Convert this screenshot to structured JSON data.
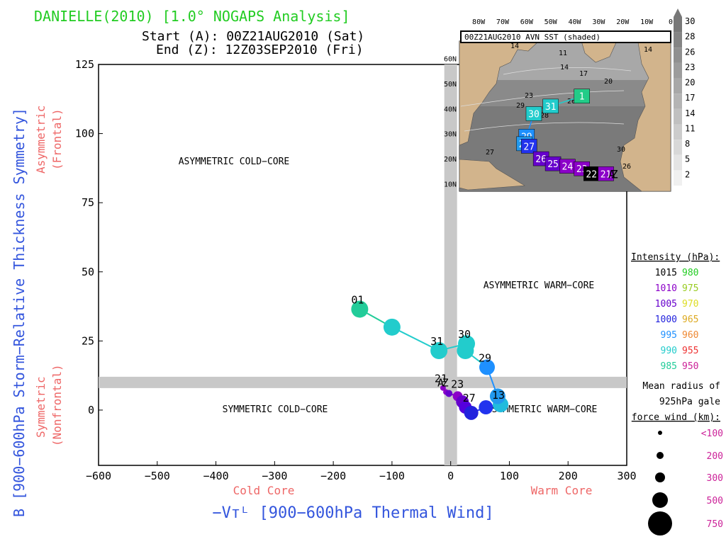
{
  "header": {
    "title": "DANIELLE(2010) [1.0° NOGAPS Analysis]",
    "start": "Start (A): 00Z21AUG2010 (Sat)",
    "end": "End (Z): 12Z03SEP2010 (Fri)"
  },
  "colors": {
    "title": "#22cc22",
    "ylabel": "#3355dd",
    "xlabel": "#3355dd",
    "regime": "#ee5555",
    "axes_gray": "#c8c8c8",
    "land": "#d2b48c"
  },
  "chart_data": {
    "type": "scatter",
    "xlabel": "−Vᴛᴸ [900−600hPa Thermal Wind]",
    "ylabel": "B [900−600hPa Storm−Relative Thickness Symmetry]",
    "xlim": [
      -600,
      300
    ],
    "ylim": [
      -20,
      125
    ],
    "xticks": [
      "−600",
      "−500",
      "−400",
      "−300",
      "−200",
      "−100",
      "0",
      "100",
      "200",
      "300"
    ],
    "yticks": [
      "0",
      "25",
      "50",
      "75",
      "100",
      "125"
    ],
    "x_regime_left": "Cold Core",
    "x_regime_right": "Warm Core",
    "y_regime_top": [
      "Asymmetric",
      "(Frontal)"
    ],
    "y_regime_bottom": [
      "Symmetric",
      "(Nonfrontal)"
    ],
    "quadrants": {
      "top_left": "ASYMMETRIC COLD−CORE",
      "top_right": "ASYMMETRIC WARM−CORE",
      "bottom_left": "SYMMETRIC COLD−CORE",
      "bottom_right": "SYMMETRIC WARM−CORE"
    },
    "points": [
      {
        "x": -13,
        "y": 8,
        "c": "#8b00c8",
        "r": 4
      },
      {
        "x": -8,
        "y": 6.5,
        "c": "#8b00c8",
        "r": 4
      },
      {
        "x": -3,
        "y": 6,
        "c": "#6600cc",
        "r": 5
      },
      {
        "x": 12,
        "y": 5,
        "c": "#8b00c8",
        "r": 7
      },
      {
        "x": 20,
        "y": 3,
        "c": "#6600cc",
        "r": 9
      },
      {
        "x": 25,
        "y": 1,
        "c": "#5500dd",
        "r": 9
      },
      {
        "x": 35,
        "y": -1,
        "c": "#2222dd",
        "r": 10
      },
      {
        "x": 60,
        "y": 1,
        "c": "#2233ee",
        "r": 10
      },
      {
        "x": 85,
        "y": 2,
        "c": "#22bbdd",
        "r": 11
      },
      {
        "x": 80,
        "y": 5,
        "c": "#2299ee",
        "r": 11
      },
      {
        "x": 62,
        "y": 15.5,
        "c": "#1e90ff",
        "r": 11
      },
      {
        "x": 25,
        "y": 21.5,
        "c": "#22cccc",
        "r": 12
      },
      {
        "x": 27,
        "y": 24,
        "c": "#22cccc",
        "r": 12
      },
      {
        "x": -20,
        "y": 21.5,
        "c": "#22cccc",
        "r": 12
      },
      {
        "x": -100,
        "y": 30,
        "c": "#22cccc",
        "r": 12
      },
      {
        "x": -155,
        "y": 36.5,
        "c": "#22cc99",
        "r": 12
      }
    ],
    "labels": [
      {
        "text": "01",
        "x": -155,
        "y": 36.5
      },
      {
        "text": "31",
        "x": -20,
        "y": 21.5
      },
      {
        "text": "30",
        "x": 27,
        "y": 24
      },
      {
        "text": "29",
        "x": 62,
        "y": 15.5
      },
      {
        "text": "21",
        "x": -13,
        "y": 8
      },
      {
        "text": "23",
        "x": 15,
        "y": 6
      },
      {
        "text": "27",
        "x": 35,
        "y": 1
      },
      {
        "text": "13",
        "x": 85,
        "y": 2
      },
      {
        "text": "A",
        "x": -8,
        "y": 6.5
      },
      {
        "text": "Z",
        "x": 0,
        "y": 6.5
      }
    ]
  },
  "inset": {
    "title": "00Z21AUG2010 AVN SST (shaded)",
    "lon_labels": [
      "80W",
      "70W",
      "60W",
      "50W",
      "40W",
      "30W",
      "20W",
      "10W",
      "0"
    ],
    "lat_labels": [
      "60N",
      "50N",
      "40N",
      "30N",
      "20N",
      "10N"
    ],
    "colorbar": [
      "30",
      "28",
      "26",
      "23",
      "20",
      "17",
      "14",
      "11",
      "8",
      "5",
      "2"
    ],
    "contour_values": [
      "14",
      "11",
      "14",
      "17",
      "20",
      "26",
      "23",
      "28",
      "29",
      "30",
      "26",
      "27",
      "14"
    ],
    "track": [
      {
        "text": "1",
        "lon": -37,
        "lat": 45,
        "c": "#22cc88"
      },
      {
        "text": "31",
        "lon": -50,
        "lat": 41,
        "c": "#22cccc"
      },
      {
        "text": "30",
        "lon": -57,
        "lat": 38,
        "c": "#22cccc"
      },
      {
        "text": "29",
        "lon": -60,
        "lat": 29,
        "c": "#1e90ff"
      },
      {
        "text": "28",
        "lon": -61,
        "lat": 26,
        "c": "#2299ee"
      },
      {
        "text": "27",
        "lon": -59,
        "lat": 25,
        "c": "#2233ee"
      },
      {
        "text": "26",
        "lon": -54,
        "lat": 20,
        "c": "#6600cc"
      },
      {
        "text": "25",
        "lon": -49,
        "lat": 18,
        "c": "#6600cc"
      },
      {
        "text": "24",
        "lon": -43,
        "lat": 17,
        "c": "#8b00c8"
      },
      {
        "text": "23",
        "lon": -37,
        "lat": 16,
        "c": "#8b00c8"
      },
      {
        "text": "22",
        "lon": -33,
        "lat": 14,
        "c": "#000000"
      },
      {
        "text": "21",
        "lon": -27,
        "lat": 14,
        "c": "#8b00c8"
      }
    ],
    "end_labels": [
      "A",
      "Z"
    ]
  },
  "legend": {
    "intensity_title": "Intensity (hPa):",
    "intensity": [
      {
        "a": "1015",
        "ac": "#000000",
        "b": "980",
        "bc": "#22cc22"
      },
      {
        "a": "1010",
        "ac": "#8b00c8",
        "b": "975",
        "bc": "#99cc22"
      },
      {
        "a": "1005",
        "ac": "#6600cc",
        "b": "970",
        "bc": "#dddd22"
      },
      {
        "a": "1000",
        "ac": "#2222dd",
        "b": "965",
        "bc": "#ddaa22"
      },
      {
        "a": "995",
        "ac": "#1e90ff",
        "b": "960",
        "bc": "#ee8833"
      },
      {
        "a": "990",
        "ac": "#22cccc",
        "b": "955",
        "bc": "#ee3333"
      },
      {
        "a": "985",
        "ac": "#22cc99",
        "b": "950",
        "bc": "#cc2299"
      }
    ],
    "radius_title": [
      "Mean radius of",
      "925hPa gale",
      "force wind (km):"
    ],
    "radius": [
      {
        "label": "<100",
        "r": 3
      },
      {
        "label": "200",
        "r": 5
      },
      {
        "label": "300",
        "r": 7
      },
      {
        "label": "500",
        "r": 11
      },
      {
        "label": "750",
        "r": 17
      }
    ],
    "radius_color": "#cc2299"
  }
}
